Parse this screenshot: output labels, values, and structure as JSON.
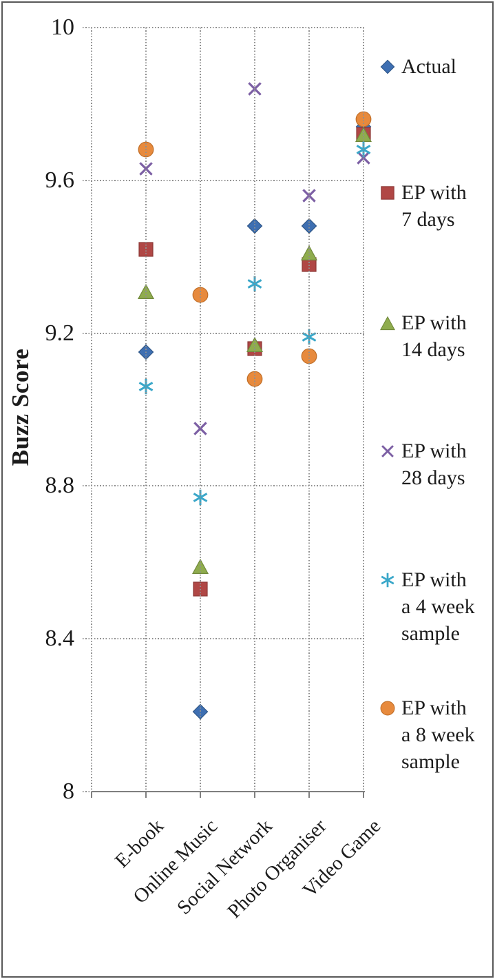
{
  "chart_data": {
    "type": "scatter",
    "title": "",
    "xlabel": "",
    "ylabel": "Buzz Score",
    "categories": [
      "E-book",
      "Online Music",
      "Social Network",
      "Photo Organiser",
      "Video Game"
    ],
    "ylim": [
      8,
      10
    ],
    "y_ticks": [
      10,
      9.6,
      9.2,
      8.8,
      8.4,
      8
    ],
    "y_tick_labels": [
      "10",
      "9.6",
      "9.2",
      "8.8",
      "8.4",
      "8"
    ],
    "grid": "dotted",
    "legend_position": "right",
    "series": [
      {
        "name": "Actual",
        "marker": "diamond",
        "color": "#3E6FB2",
        "edge": "#2F5687",
        "legend_lines": [
          "Actual"
        ],
        "values": [
          9.15,
          8.21,
          9.48,
          9.48,
          9.74
        ]
      },
      {
        "name": "EP with 7 days",
        "marker": "square",
        "color": "#B04745",
        "edge": "#8C3836",
        "legend_lines": [
          "EP with",
          "7 days"
        ],
        "values": [
          9.42,
          8.53,
          9.16,
          9.38,
          9.72
        ]
      },
      {
        "name": "EP with 14 days",
        "marker": "triangle",
        "color": "#8FAC4E",
        "edge": "#71893B",
        "legend_lines": [
          "EP with",
          "14 days"
        ],
        "values": [
          9.31,
          8.59,
          9.17,
          9.41,
          9.72
        ]
      },
      {
        "name": "EP with 28 days",
        "marker": "x",
        "color": "#7C5FA4",
        "edge": "#5F4880",
        "legend_lines": [
          "EP with",
          "28 days"
        ],
        "values": [
          9.63,
          8.95,
          9.84,
          9.56,
          9.66
        ]
      },
      {
        "name": "EP with a 4 week sample",
        "marker": "asterisk",
        "color": "#3AA7C9",
        "edge": "#2484A0",
        "legend_lines": [
          "EP with",
          "a 4 week",
          "sample"
        ],
        "values": [
          9.06,
          8.77,
          9.33,
          9.19,
          9.68
        ]
      },
      {
        "name": "EP with a 8 week sample",
        "marker": "circle",
        "color": "#E78A3D",
        "edge": "#C06E27",
        "legend_lines": [
          "EP with",
          "a 8 week",
          "sample"
        ],
        "values": [
          9.68,
          9.3,
          9.08,
          9.14,
          9.76
        ]
      }
    ]
  }
}
